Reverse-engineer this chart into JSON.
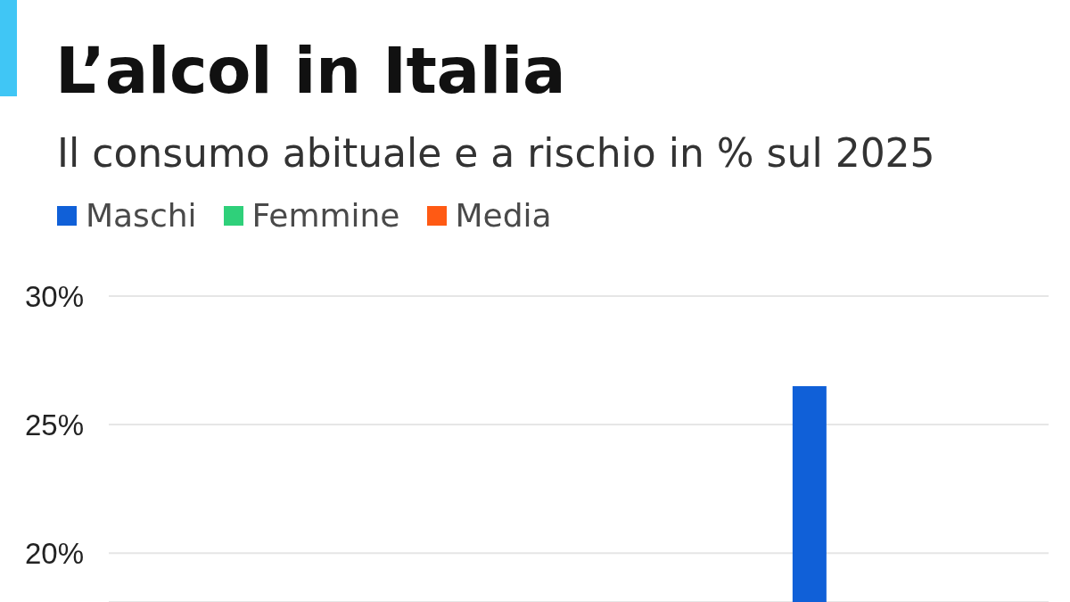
{
  "chart_data": {
    "type": "bar",
    "title": "L’alcol in Italia",
    "subtitle": "Il consumo abituale e a rischio in % sul 2025",
    "categories": [
      null,
      null,
      null,
      null,
      null,
      null,
      null
    ],
    "series": [
      {
        "name": "Maschi",
        "color": "#1060d8",
        "values": [
          null,
          null,
          null,
          null,
          null,
          26.5,
          null
        ]
      },
      {
        "name": "Femmine",
        "color": "#2fd07a",
        "values": [
          null,
          null,
          null,
          null,
          null,
          null,
          null
        ]
      },
      {
        "name": "Media",
        "color": "#ff5a14",
        "values": [
          null,
          null,
          null,
          null,
          null,
          null,
          null
        ]
      }
    ],
    "ylim": [
      18.1,
      30
    ],
    "yticks": [
      {
        "value": 20,
        "label": "20%"
      },
      {
        "value": 25,
        "label": "25%"
      },
      {
        "value": 30,
        "label": "30%"
      }
    ],
    "grid": "y",
    "legend": "top left",
    "tick_labels": "y"
  }
}
